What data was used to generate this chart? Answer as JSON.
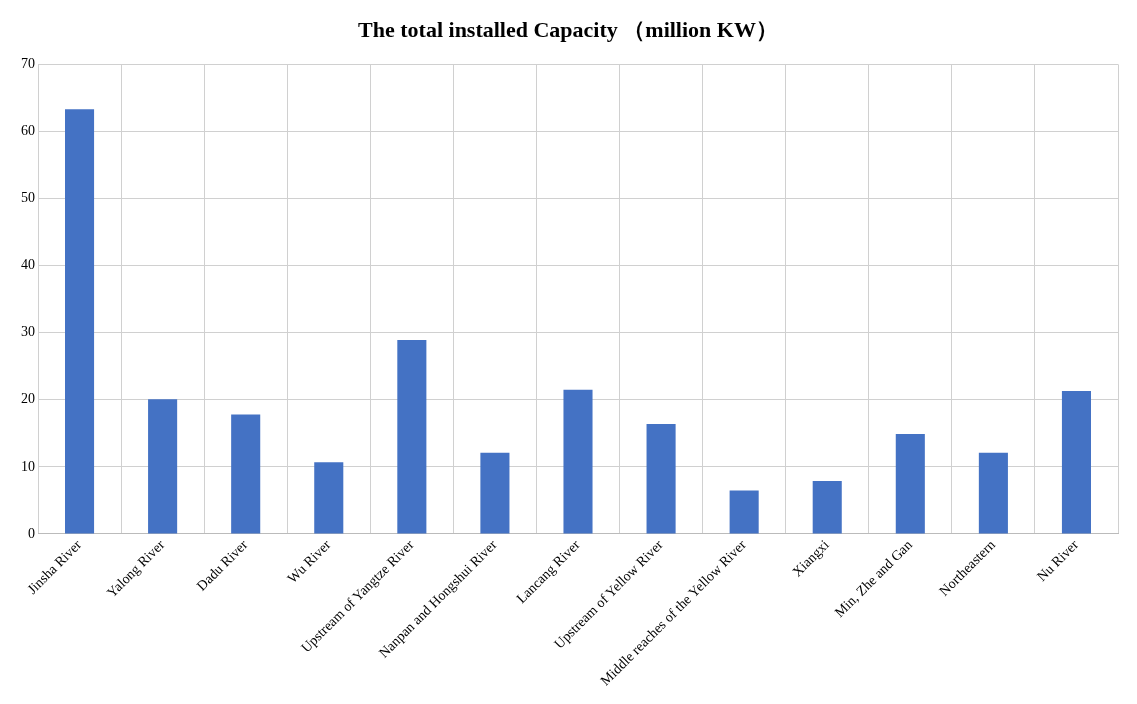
{
  "chart_data": {
    "type": "bar",
    "title": "The total installed Capacity （million KW）",
    "categories": [
      "Jinsha River",
      "Yalong River",
      "Dadu River",
      "Wu River",
      "Upstream of Yangtze River",
      "Nanpan and Hongshui River",
      "Lancang River",
      "Upstream of Yellow River",
      "Middle reaches of the Yellow River",
      "Xiangxi",
      "Min, Zhe and Gan",
      "Northeastern",
      "Nu River"
    ],
    "values": [
      63.3,
      20.1,
      17.8,
      10.7,
      28.9,
      12.1,
      21.5,
      16.4,
      6.5,
      7.9,
      14.9,
      12.1,
      21.3
    ],
    "color": "#4472c4",
    "ylim": [
      0,
      70
    ],
    "yticks": [
      0,
      10,
      20,
      30,
      40,
      50,
      60,
      70
    ],
    "grid": true,
    "legend": false
  }
}
